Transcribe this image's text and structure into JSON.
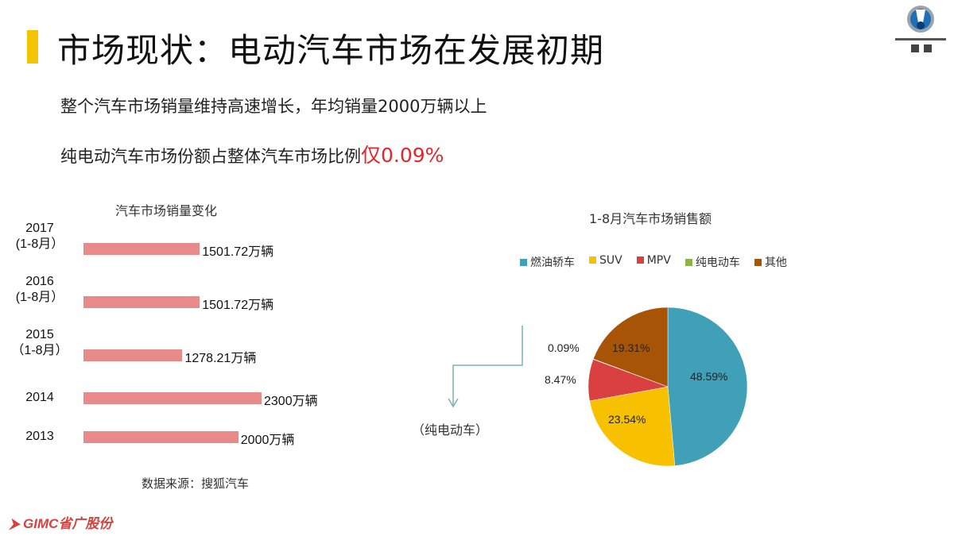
{
  "title": "市场现状：电动汽车市场在发展初期",
  "bullets": [
    "整个汽车市场销量维持高速增长，年均销量2000万辆以上",
    "纯电动汽车市场份额占整体汽车市场比例"
  ],
  "highlight": "仅0.09%",
  "source": "数据来源：搜狐汽车",
  "callout": "（纯电动车）",
  "logos": {
    "top_right": "DENZA 腾势",
    "bottom_left": "GIMC省广股份"
  },
  "chart_data": [
    {
      "type": "bar",
      "orientation": "horizontal",
      "title": "汽车市场销量变化",
      "categories": [
        [
          "2017",
          "(1-8月）"
        ],
        [
          "2016",
          "(1-8月）"
        ],
        [
          "2015",
          "（1-8月）"
        ],
        [
          "2014"
        ],
        [
          "2013"
        ]
      ],
      "values": [
        1501.72,
        1501.72,
        1278.21,
        2300,
        2000
      ],
      "data_labels": [
        "1501.72万辆",
        "1501.72万辆",
        "1278.21万辆",
        "2300万辆",
        "2000万辆"
      ],
      "color": "#e88a8a"
    },
    {
      "type": "pie",
      "title": "1-8月汽车市场销售额",
      "legend": "top",
      "labels": [
        "燃油轿车",
        "SUV",
        "MPV",
        "纯电动车",
        "其他"
      ],
      "values": [
        48.59,
        23.54,
        8.47,
        0.09,
        19.31
      ],
      "data_labels": [
        "48.59%",
        "23.54%",
        "8.47%",
        "0.09%",
        "19.31%"
      ],
      "colors": [
        "#3fa0b8",
        "#f7c100",
        "#d9403f",
        "#8ab34a",
        "#a85406"
      ]
    }
  ]
}
